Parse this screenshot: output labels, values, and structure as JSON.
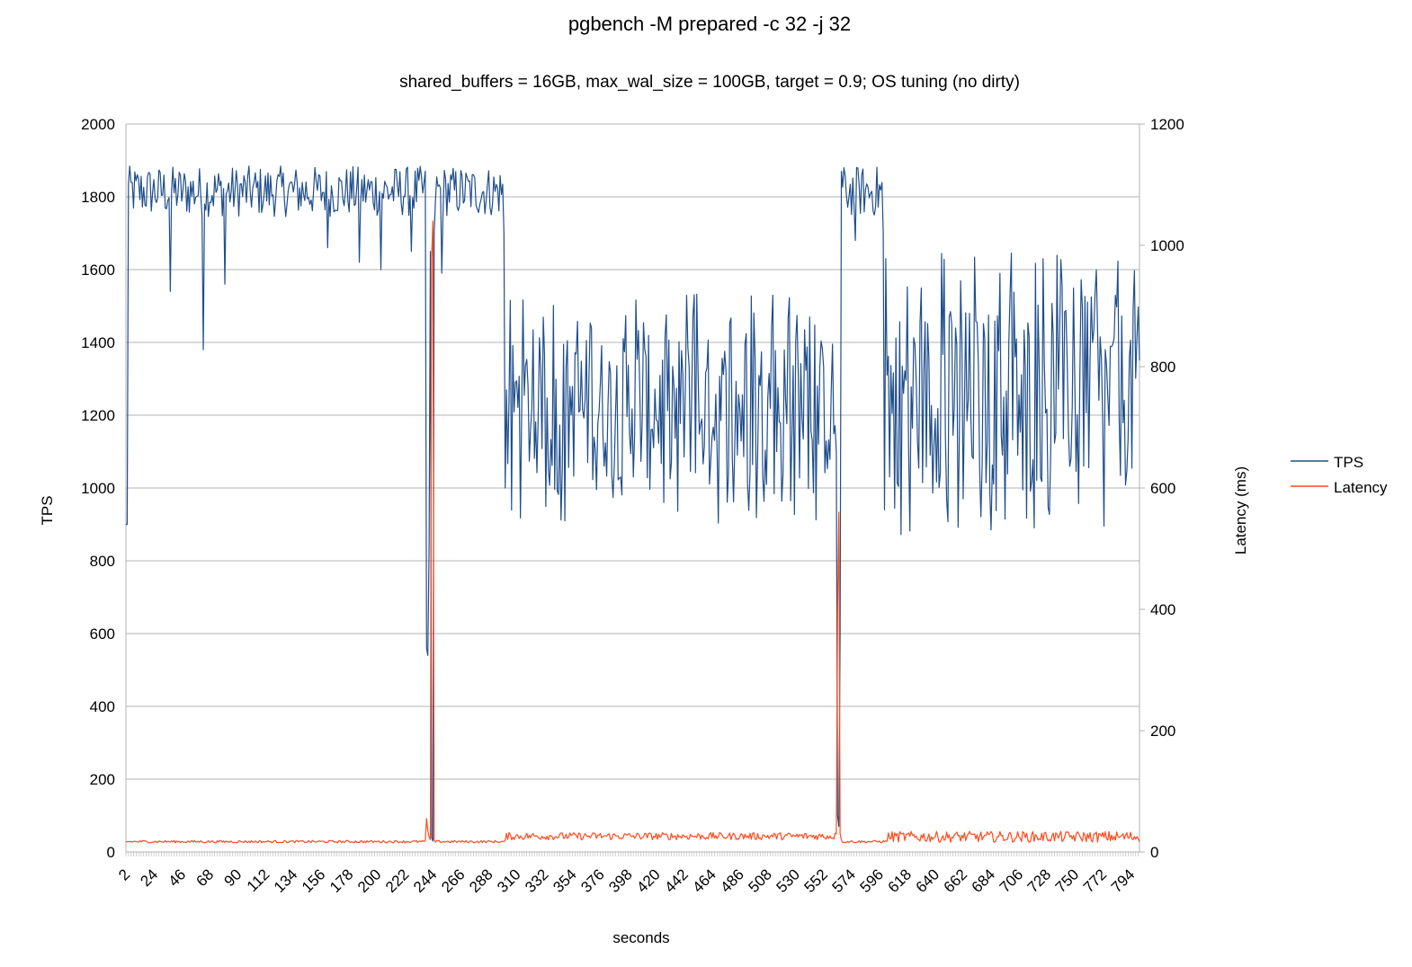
{
  "chart_data": {
    "type": "line",
    "title": "pgbench -M prepared -c 32 -j 32",
    "subtitle": "shared_buffers = 16GB, max_wal_size = 100GB, target = 0.9; OS tuning (no dirty)",
    "xlabel": "seconds",
    "ylabel": "TPS",
    "y2label": "Latency (ms)",
    "xlim": [
      1,
      800
    ],
    "ylim": [
      0,
      2000
    ],
    "y2lim": [
      0,
      1200
    ],
    "grid": true,
    "legend_position": "right",
    "y_ticks": [
      0,
      200,
      400,
      600,
      800,
      1000,
      1200,
      1400,
      1600,
      1800,
      2000
    ],
    "y2_ticks": [
      0,
      200,
      400,
      600,
      800,
      1000,
      1200
    ],
    "x_ticks": [
      2,
      24,
      46,
      68,
      90,
      112,
      134,
      156,
      178,
      200,
      222,
      244,
      266,
      288,
      310,
      332,
      354,
      376,
      398,
      420,
      442,
      464,
      486,
      508,
      530,
      552,
      574,
      596,
      618,
      640,
      662,
      684,
      706,
      728,
      750,
      772,
      794
    ],
    "series": [
      {
        "name": "TPS",
        "axis": "left",
        "color": "#1f4e8c",
        "segments": [
          {
            "x_start": 1,
            "x_end": 2,
            "mean": 900,
            "amp": 0,
            "min_dip": null
          },
          {
            "x_start": 3,
            "x_end": 237,
            "mean": 1815,
            "amp": 70,
            "dips": [
              [
                36,
                1540
              ],
              [
                62,
                1380
              ],
              [
                79,
                1560
              ],
              [
                160,
                1660
              ],
              [
                185,
                1620
              ],
              [
                202,
                1600
              ],
              [
                226,
                1650
              ]
            ]
          },
          {
            "x_start": 238,
            "x_end": 240,
            "values": [
              560,
              540,
              840
            ]
          },
          {
            "x_start": 241,
            "x_end": 241,
            "values": [
              1650
            ]
          },
          {
            "x_start": 242,
            "x_end": 244,
            "values": [
              40,
              30,
              1700
            ]
          },
          {
            "x_start": 245,
            "x_end": 298,
            "mean": 1815,
            "amp": 70,
            "dips": [
              [
                250,
                1590
              ]
            ]
          },
          {
            "x_start": 299,
            "x_end": 300,
            "values": [
              1700,
              1000
            ]
          },
          {
            "x_start": 301,
            "x_end": 560,
            "mean": 1220,
            "amp": 200,
            "min": 900,
            "max": 1540
          },
          {
            "x_start": 561,
            "x_end": 563,
            "values": [
              1100,
              100,
              70
            ]
          },
          {
            "x_start": 564,
            "x_end": 565,
            "values": [
              600,
              1870
            ]
          },
          {
            "x_start": 566,
            "x_end": 597,
            "mean": 1815,
            "amp": 70,
            "dips": [
              [
                576,
                1680
              ]
            ]
          },
          {
            "x_start": 598,
            "x_end": 600,
            "values": [
              1700,
              940,
              1630
            ]
          },
          {
            "x_start": 601,
            "x_end": 800,
            "mean": 1250,
            "amp": 250,
            "min": 820,
            "max": 1700
          }
        ]
      },
      {
        "name": "Latency",
        "axis": "right",
        "color": "#ff4a1c",
        "segments": [
          {
            "x_start": 1,
            "x_end": 237,
            "mean": 17,
            "amp": 2
          },
          {
            "x_start": 238,
            "x_end": 240,
            "values": [
              55,
              35,
              25
            ]
          },
          {
            "x_start": 241,
            "x_end": 244,
            "values": [
              20,
              980,
              1040,
              20
            ]
          },
          {
            "x_start": 245,
            "x_end": 300,
            "mean": 17,
            "amp": 2
          },
          {
            "x_start": 301,
            "x_end": 560,
            "mean": 26,
            "amp": 6
          },
          {
            "x_start": 561,
            "x_end": 565,
            "values": [
              30,
              400,
              560,
              30,
              20
            ]
          },
          {
            "x_start": 566,
            "x_end": 600,
            "mean": 17,
            "amp": 2
          },
          {
            "x_start": 601,
            "x_end": 800,
            "mean": 25,
            "amp": 9
          }
        ]
      }
    ]
  }
}
